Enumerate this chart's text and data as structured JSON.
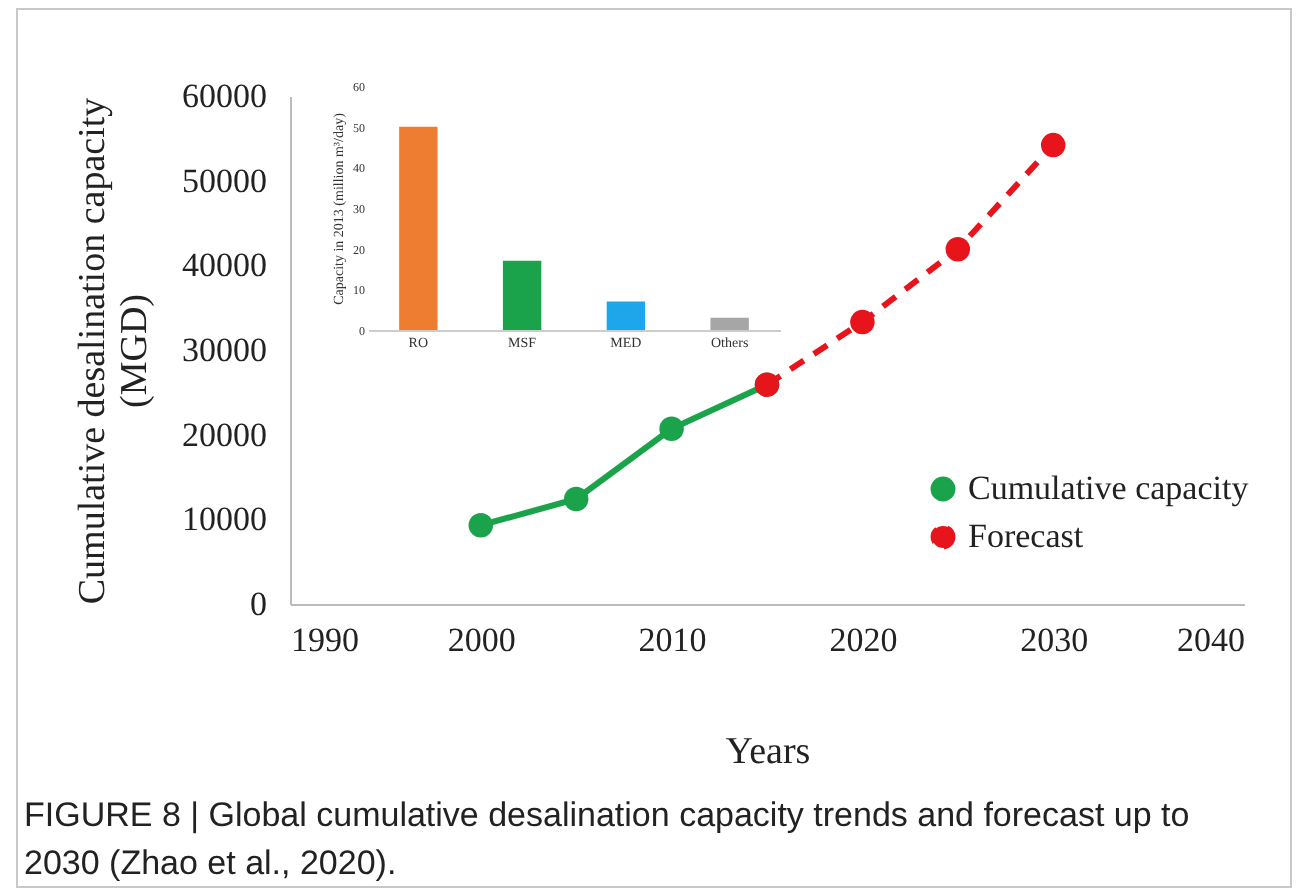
{
  "chart_data": [
    {
      "type": "line",
      "xlabel": "Years",
      "ylabel": "Cumulative desalination capacity (MGD)",
      "xlim": [
        1990,
        2040
      ],
      "xticks": [
        1990,
        2000,
        2010,
        2020,
        2030,
        2040
      ],
      "ylim": [
        0,
        60000
      ],
      "yticks": [
        0,
        10000,
        20000,
        30000,
        40000,
        50000,
        60000
      ],
      "grid": false,
      "legend": "bottom right",
      "marker": "circle",
      "series": [
        {
          "name": "Cumulative capacity",
          "color": "#1aa34a",
          "line_style": "solid",
          "x": [
            2000,
            2005,
            2010,
            2015
          ],
          "values": [
            9300,
            12400,
            20700,
            25900
          ]
        },
        {
          "name": "Forecast",
          "color": "#e8141b",
          "line_style": "dashed",
          "x": [
            2015,
            2020,
            2025,
            2030
          ],
          "values": [
            25900,
            33300,
            41900,
            54200
          ]
        }
      ],
      "annotations": [
        "FIGURE 8 | Global cumulative desalination capacity trends and forecast up to 2030 (Zhao et al., 2020)."
      ]
    },
    {
      "type": "bar",
      "ylabel": "Capacity in 2013 (million m³/day)",
      "categories": [
        "RO",
        "MSF",
        "MED",
        "Others"
      ],
      "values": [
        50,
        17,
        7,
        3
      ],
      "colors": [
        "#ef7d31",
        "#1aa34a",
        "#1ea6ea",
        "#a6a6a6"
      ],
      "ylim": [
        0,
        60
      ],
      "yticks": [
        0,
        10,
        20,
        30,
        40,
        50,
        60
      ],
      "grid": false
    }
  ]
}
